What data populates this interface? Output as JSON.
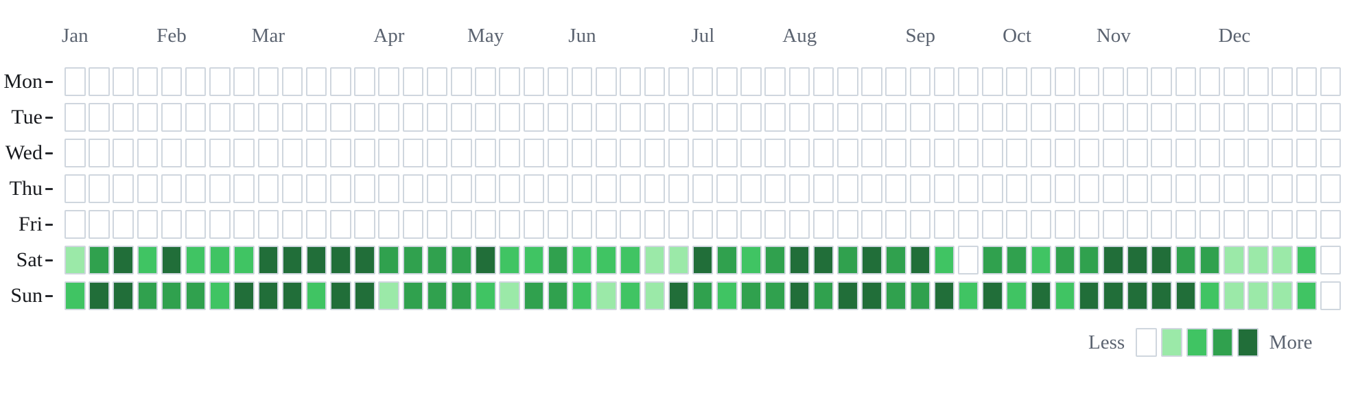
{
  "chart_data": {
    "type": "heatmap",
    "variant": "calendar-contribution-grid",
    "title": "",
    "weeks": 53,
    "grid_on": false,
    "months": [
      {
        "label": "Jan",
        "anchor_week": 0
      },
      {
        "label": "Feb",
        "anchor_week": 4
      },
      {
        "label": "Mar",
        "anchor_week": 8
      },
      {
        "label": "Apr",
        "anchor_week": 13
      },
      {
        "label": "May",
        "anchor_week": 17
      },
      {
        "label": "Jun",
        "anchor_week": 21
      },
      {
        "label": "Jul",
        "anchor_week": 26
      },
      {
        "label": "Aug",
        "anchor_week": 30
      },
      {
        "label": "Sep",
        "anchor_week": 35
      },
      {
        "label": "Oct",
        "anchor_week": 39
      },
      {
        "label": "Nov",
        "anchor_week": 43
      },
      {
        "label": "Dec",
        "anchor_week": 48
      }
    ],
    "weekdays": [
      "Mon",
      "Tue",
      "Wed",
      "Thu",
      "Fri",
      "Sat",
      "Sun"
    ],
    "palette": [
      "#ffffff",
      "#9be9a8",
      "#40c463",
      "#30a14e",
      "#216e39"
    ],
    "cell_border_color": "#cfd6de",
    "series": [
      {
        "day": "Mon",
        "levels": [
          0,
          0,
          0,
          0,
          0,
          0,
          0,
          0,
          0,
          0,
          0,
          0,
          0,
          0,
          0,
          0,
          0,
          0,
          0,
          0,
          0,
          0,
          0,
          0,
          0,
          0,
          0,
          0,
          0,
          0,
          0,
          0,
          0,
          0,
          0,
          0,
          0,
          0,
          0,
          0,
          0,
          0,
          0,
          0,
          0,
          0,
          0,
          0,
          0,
          0,
          0,
          0,
          0
        ]
      },
      {
        "day": "Tue",
        "levels": [
          0,
          0,
          0,
          0,
          0,
          0,
          0,
          0,
          0,
          0,
          0,
          0,
          0,
          0,
          0,
          0,
          0,
          0,
          0,
          0,
          0,
          0,
          0,
          0,
          0,
          0,
          0,
          0,
          0,
          0,
          0,
          0,
          0,
          0,
          0,
          0,
          0,
          0,
          0,
          0,
          0,
          0,
          0,
          0,
          0,
          0,
          0,
          0,
          0,
          0,
          0,
          0,
          0
        ]
      },
      {
        "day": "Wed",
        "levels": [
          0,
          0,
          0,
          0,
          0,
          0,
          0,
          0,
          0,
          0,
          0,
          0,
          0,
          0,
          0,
          0,
          0,
          0,
          0,
          0,
          0,
          0,
          0,
          0,
          0,
          0,
          0,
          0,
          0,
          0,
          0,
          0,
          0,
          0,
          0,
          0,
          0,
          0,
          0,
          0,
          0,
          0,
          0,
          0,
          0,
          0,
          0,
          0,
          0,
          0,
          0,
          0,
          0
        ]
      },
      {
        "day": "Thu",
        "levels": [
          0,
          0,
          0,
          0,
          0,
          0,
          0,
          0,
          0,
          0,
          0,
          0,
          0,
          0,
          0,
          0,
          0,
          0,
          0,
          0,
          0,
          0,
          0,
          0,
          0,
          0,
          0,
          0,
          0,
          0,
          0,
          0,
          0,
          0,
          0,
          0,
          0,
          0,
          0,
          0,
          0,
          0,
          0,
          0,
          0,
          0,
          0,
          0,
          0,
          0,
          0,
          0,
          0
        ]
      },
      {
        "day": "Fri",
        "levels": [
          0,
          0,
          0,
          0,
          0,
          0,
          0,
          0,
          0,
          0,
          0,
          0,
          0,
          0,
          0,
          0,
          0,
          0,
          0,
          0,
          0,
          0,
          0,
          0,
          0,
          0,
          0,
          0,
          0,
          0,
          0,
          0,
          0,
          0,
          0,
          0,
          0,
          0,
          0,
          0,
          0,
          0,
          0,
          0,
          0,
          0,
          0,
          0,
          0,
          0,
          0,
          0,
          0
        ]
      },
      {
        "day": "Sat",
        "levels": [
          1,
          3,
          4,
          2,
          4,
          2,
          2,
          2,
          4,
          4,
          4,
          4,
          4,
          3,
          3,
          3,
          3,
          4,
          2,
          2,
          3,
          2,
          2,
          2,
          1,
          1,
          4,
          3,
          2,
          3,
          4,
          4,
          3,
          4,
          3,
          4,
          2,
          0,
          3,
          3,
          2,
          3,
          3,
          4,
          4,
          4,
          3,
          3,
          1,
          1,
          1,
          2,
          0
        ]
      },
      {
        "day": "Sun",
        "levels": [
          2,
          4,
          4,
          3,
          3,
          3,
          2,
          4,
          4,
          4,
          2,
          4,
          4,
          1,
          3,
          3,
          3,
          2,
          1,
          3,
          3,
          2,
          1,
          2,
          1,
          4,
          3,
          2,
          3,
          3,
          4,
          3,
          4,
          4,
          3,
          3,
          4,
          2,
          4,
          2,
          4,
          2,
          4,
          4,
          4,
          4,
          4,
          2,
          1,
          1,
          1,
          2,
          0
        ]
      }
    ],
    "legend": {
      "less_label": "Less",
      "more_label": "More",
      "swatch_levels": [
        0,
        1,
        2,
        3,
        4
      ],
      "position": "bottom-right"
    }
  }
}
